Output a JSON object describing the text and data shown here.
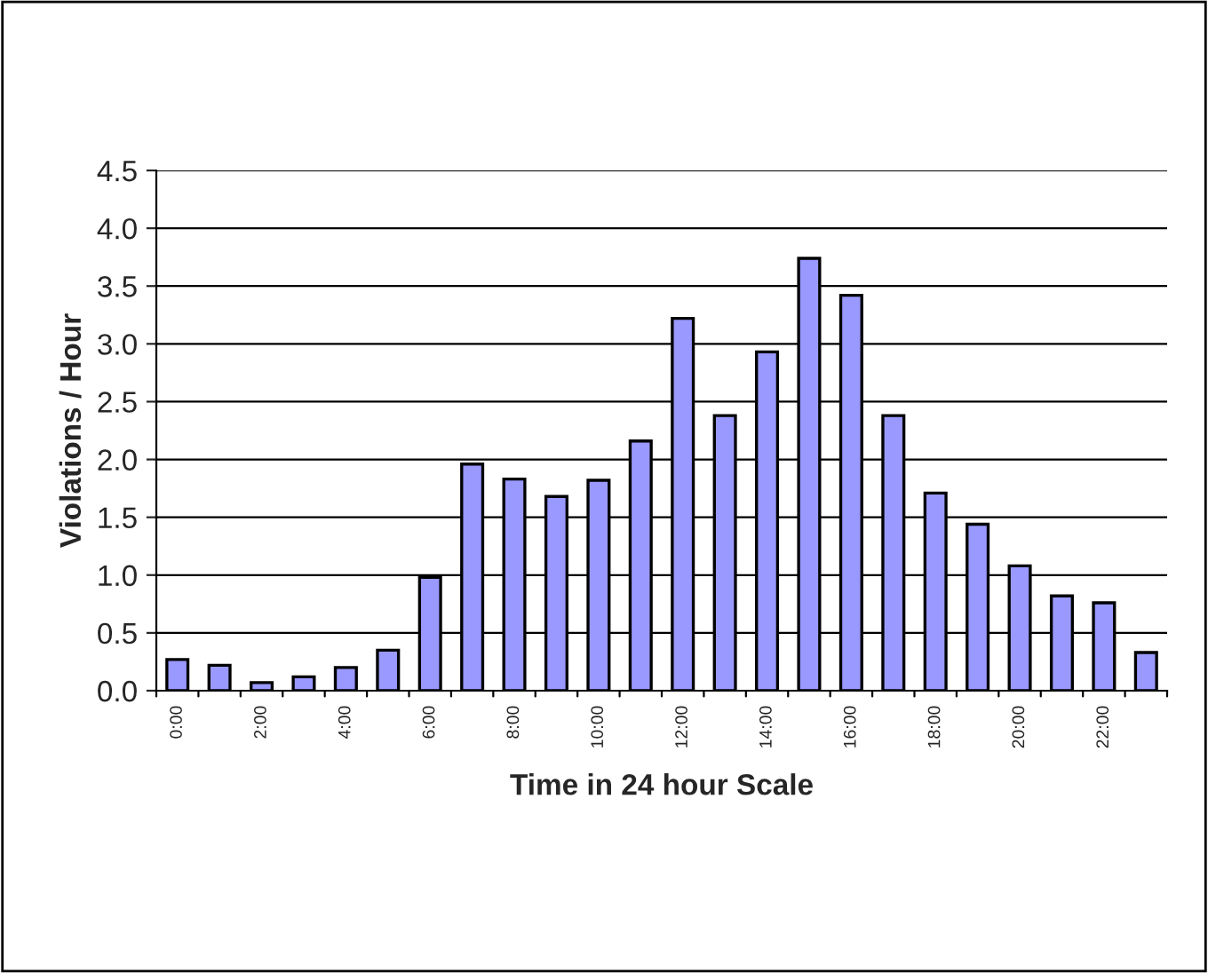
{
  "chart_data": {
    "type": "bar",
    "categories": [
      "0:00",
      null,
      "2:00",
      null,
      "4:00",
      null,
      "6:00",
      null,
      "8:00",
      null,
      "10:00",
      null,
      "12:00",
      null,
      "14:00",
      null,
      "16:00",
      null,
      "18:00",
      null,
      "20:00",
      null,
      "22:00",
      null
    ],
    "values": [
      0.27,
      0.22,
      0.07,
      0.12,
      0.2,
      0.35,
      0.98,
      1.96,
      1.83,
      1.68,
      1.82,
      2.16,
      3.22,
      2.38,
      2.93,
      3.74,
      3.42,
      2.38,
      1.71,
      1.44,
      1.08,
      0.82,
      0.76,
      0.33
    ],
    "color": "#9999ff",
    "xlabel": "Time in 24 hour Scale",
    "ylabel": "Violations / Hour",
    "ylim": [
      0,
      4.5
    ],
    "yticks": [
      {
        "value": 0,
        "label": "0.0"
      },
      {
        "value": 0.5,
        "label": "0.5"
      },
      {
        "value": 1,
        "label": "1.0"
      },
      {
        "value": 1.5,
        "label": "1.5"
      },
      {
        "value": 2,
        "label": "2.0"
      },
      {
        "value": 2.5,
        "label": "2.5"
      },
      {
        "value": 3,
        "label": "3.0"
      },
      {
        "value": 3.5,
        "label": "3.5"
      },
      {
        "value": 4,
        "label": "4.0"
      },
      {
        "value": 4.5,
        "label": "4.5"
      }
    ],
    "grid": "y",
    "legend": false
  }
}
